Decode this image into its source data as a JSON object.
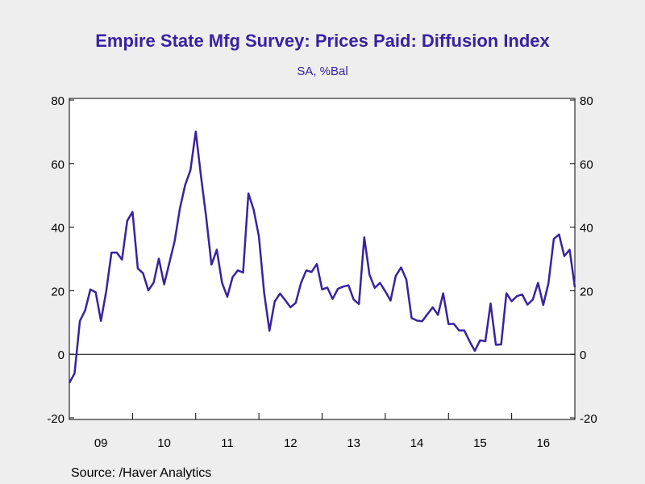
{
  "title_color": "#3a22a0",
  "line_color": "#3a22a0",
  "chart_data": {
    "type": "line",
    "title": "Empire State Mfg Survey: Prices Paid: Diffusion Index",
    "subtitle": "SA, %Bal",
    "source": "Source:  /Haver Analytics",
    "ylim": [
      -20,
      80
    ],
    "yticks": [
      -20,
      0,
      20,
      40,
      60,
      80
    ],
    "ytick_labels": [
      "-20",
      "0",
      "20",
      "40",
      "60",
      "80"
    ],
    "x_labels": [
      "09",
      "10",
      "11",
      "12",
      "13",
      "14",
      "15",
      "16"
    ],
    "x_start": "2009-01",
    "x_end": "2016-12",
    "zero_line": true,
    "grid": false,
    "series": [
      {
        "values": [
          -9,
          -6,
          10.5,
          13.8,
          20.4,
          19.5,
          10.5,
          19.8,
          32,
          32,
          29.8,
          42,
          44.8,
          27,
          25.5,
          20.1,
          22.5,
          30.1,
          22,
          28.8,
          35.6,
          46,
          53.3,
          57.9,
          70.1,
          56,
          43,
          28.2,
          32.9,
          22.5,
          18.1,
          24.3,
          26.4,
          25.7,
          50.6,
          45.5,
          37.1,
          19.2,
          7.4,
          16.6,
          19.1,
          17,
          14.8,
          16.2,
          22.5,
          26.4,
          25.9,
          28.4,
          20.4,
          21,
          17.4,
          20.6,
          21.3,
          21.7,
          17.2,
          15.8,
          36.8,
          25,
          20.9,
          22.5,
          19.8,
          16.9,
          24.7,
          27.3,
          23.5,
          11.4,
          10.6,
          10.4,
          12.6,
          14.8,
          12.4,
          19.2,
          9.5,
          9.6,
          7.5,
          7.5,
          4.1,
          1.1,
          4.4,
          4.1,
          16,
          3,
          3.1,
          19.2,
          16.7,
          18.3,
          18.8,
          15.6,
          17.2,
          22.5,
          15.5,
          22.4,
          36.3,
          37.7,
          30.9,
          32.9,
          21.1
        ]
      }
    ]
  }
}
